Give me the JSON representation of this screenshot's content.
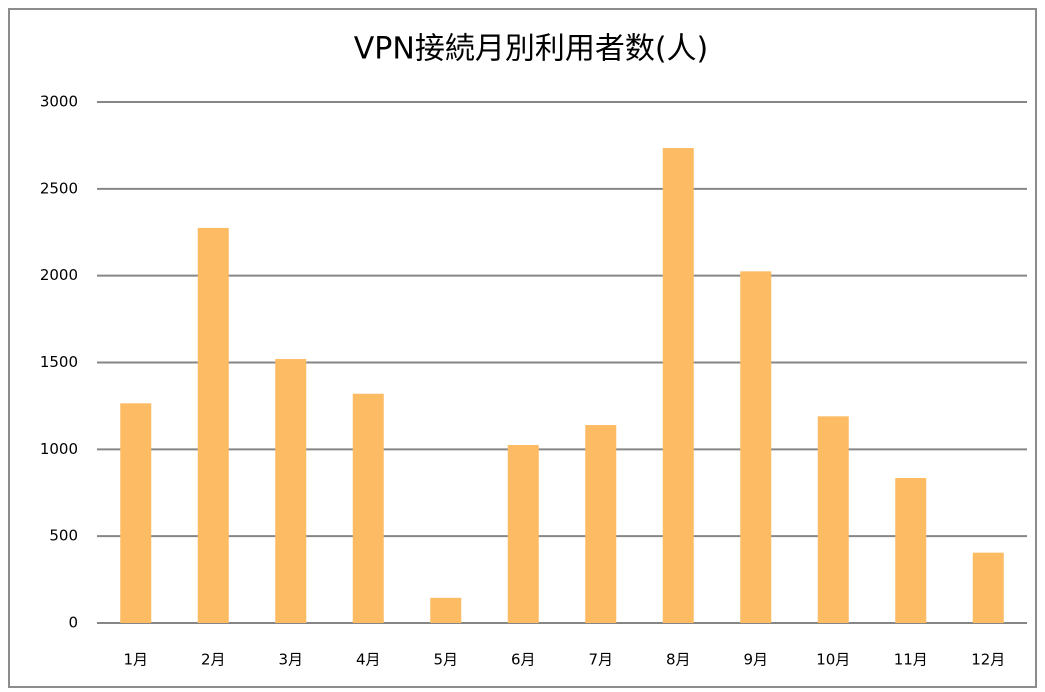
{
  "chart_data": {
    "type": "bar",
    "title": "VPN接続月別利用者数(人)",
    "categories": [
      "1月",
      "2月",
      "3月",
      "4月",
      "5月",
      "6月",
      "7月",
      "8月",
      "9月",
      "10月",
      "11月",
      "12月"
    ],
    "values": [
      1265,
      2275,
      1520,
      1320,
      145,
      1025,
      1140,
      2735,
      2025,
      1190,
      835,
      405
    ],
    "color": "#fdbb63",
    "ylim": [
      0,
      3000
    ],
    "yticks": [
      0,
      500,
      1000,
      1500,
      2000,
      2500,
      3000
    ],
    "grid": true
  }
}
